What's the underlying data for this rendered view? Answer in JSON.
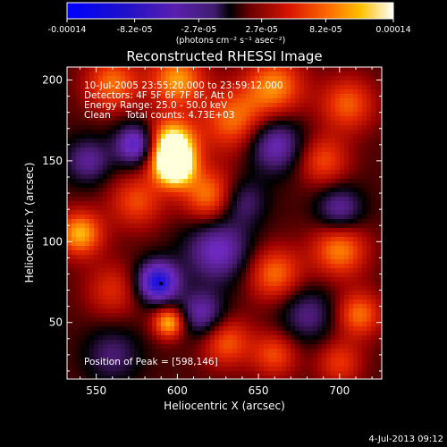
{
  "chart_data": {
    "type": "heatmap",
    "title": "Reconstructed RHESSI Image",
    "xlabel": "Heliocentric X (arcsec)",
    "ylabel": "Heliocentric Y (arcsec)",
    "xlim": [
      532,
      726
    ],
    "ylim": [
      15,
      208
    ],
    "x_ticks": [
      550,
      600,
      650,
      700
    ],
    "y_ticks": [
      50,
      100,
      150,
      200
    ],
    "colorbar": {
      "tick_labels": [
        "-0.00014",
        "-8.2e-05",
        "-2.7e-05",
        "2.7e-05",
        "8.2e-05",
        "0.00014"
      ],
      "range": [
        -0.00014,
        0.00014
      ],
      "units_label": "(photons cm⁻² s⁻¹ asec⁻²)"
    },
    "info_lines": [
      "10-Jul-2005 23:55:20.000 to 23:59:12.000",
      "Detectors: 4F 5F 6F 7F 8F, Att 0",
      "Energy Range: 25.0 - 50.0 keV",
      "Clean     Total counts: 4.73E+03"
    ],
    "peak_label": "Position of Peak = [598,146]",
    "peak_position": [
      598,
      146
    ],
    "timestamp": "4-Jul-2013 09:12",
    "blobs": [
      {
        "x": 596,
        "y": 160,
        "v": 1.0,
        "r": 11
      },
      {
        "x": 598,
        "y": 146,
        "v": 0.95,
        "r": 9
      },
      {
        "x": 620,
        "y": 128,
        "v": 0.6,
        "r": 12
      },
      {
        "x": 635,
        "y": 175,
        "v": 0.55,
        "r": 14
      },
      {
        "x": 560,
        "y": 198,
        "v": 0.55,
        "r": 12
      },
      {
        "x": 600,
        "y": 200,
        "v": 0.65,
        "r": 12
      },
      {
        "x": 660,
        "y": 196,
        "v": 0.6,
        "r": 13
      },
      {
        "x": 705,
        "y": 185,
        "v": 0.5,
        "r": 12
      },
      {
        "x": 690,
        "y": 150,
        "v": 0.45,
        "r": 11
      },
      {
        "x": 540,
        "y": 105,
        "v": 0.7,
        "r": 10
      },
      {
        "x": 575,
        "y": 125,
        "v": 0.45,
        "r": 12
      },
      {
        "x": 660,
        "y": 80,
        "v": 0.55,
        "r": 12
      },
      {
        "x": 700,
        "y": 95,
        "v": 0.6,
        "r": 12
      },
      {
        "x": 712,
        "y": 55,
        "v": 0.55,
        "r": 10
      },
      {
        "x": 595,
        "y": 50,
        "v": 0.75,
        "r": 7
      },
      {
        "x": 630,
        "y": 38,
        "v": 0.5,
        "r": 11
      },
      {
        "x": 560,
        "y": 70,
        "v": 0.35,
        "r": 12
      },
      {
        "x": 660,
        "y": 30,
        "v": 0.45,
        "r": 10
      },
      {
        "x": 700,
        "y": 25,
        "v": 0.4,
        "r": 10
      },
      {
        "x": 575,
        "y": 160,
        "v": -0.8,
        "r": 9
      },
      {
        "x": 660,
        "y": 160,
        "v": -0.6,
        "r": 12
      },
      {
        "x": 700,
        "y": 120,
        "v": -0.5,
        "r": 10
      },
      {
        "x": 588,
        "y": 75,
        "v": -1.0,
        "r": 9
      },
      {
        "x": 625,
        "y": 95,
        "v": -0.6,
        "r": 14
      },
      {
        "x": 545,
        "y": 150,
        "v": -0.45,
        "r": 10
      },
      {
        "x": 615,
        "y": 55,
        "v": -0.55,
        "r": 10
      },
      {
        "x": 640,
        "y": 125,
        "v": -0.4,
        "r": 10
      },
      {
        "x": 680,
        "y": 55,
        "v": -0.4,
        "r": 12
      },
      {
        "x": 560,
        "y": 30,
        "v": -0.35,
        "r": 12
      }
    ]
  }
}
